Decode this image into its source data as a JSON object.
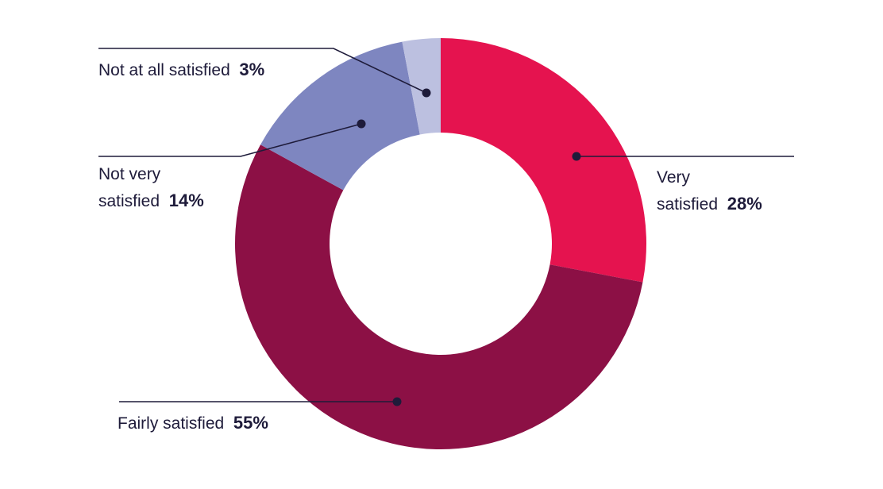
{
  "chart_data": {
    "type": "pie",
    "style": "donut",
    "slices": [
      {
        "label_lines": [
          "Very",
          "satisfied"
        ],
        "value": 28,
        "value_label": "28%",
        "color": "#e5134f"
      },
      {
        "label_lines": [
          "Fairly satisfied"
        ],
        "value": 55,
        "value_label": "55%",
        "color": "#8c1045"
      },
      {
        "label_lines": [
          "Not very",
          "satisfied"
        ],
        "value": 14,
        "value_label": "14%",
        "color": "#7e86c0"
      },
      {
        "label_lines": [
          "Not at all satisfied"
        ],
        "value": 3,
        "value_label": "3%",
        "color": "#bcc0e0"
      }
    ],
    "label_color": "#1e1b3a"
  }
}
